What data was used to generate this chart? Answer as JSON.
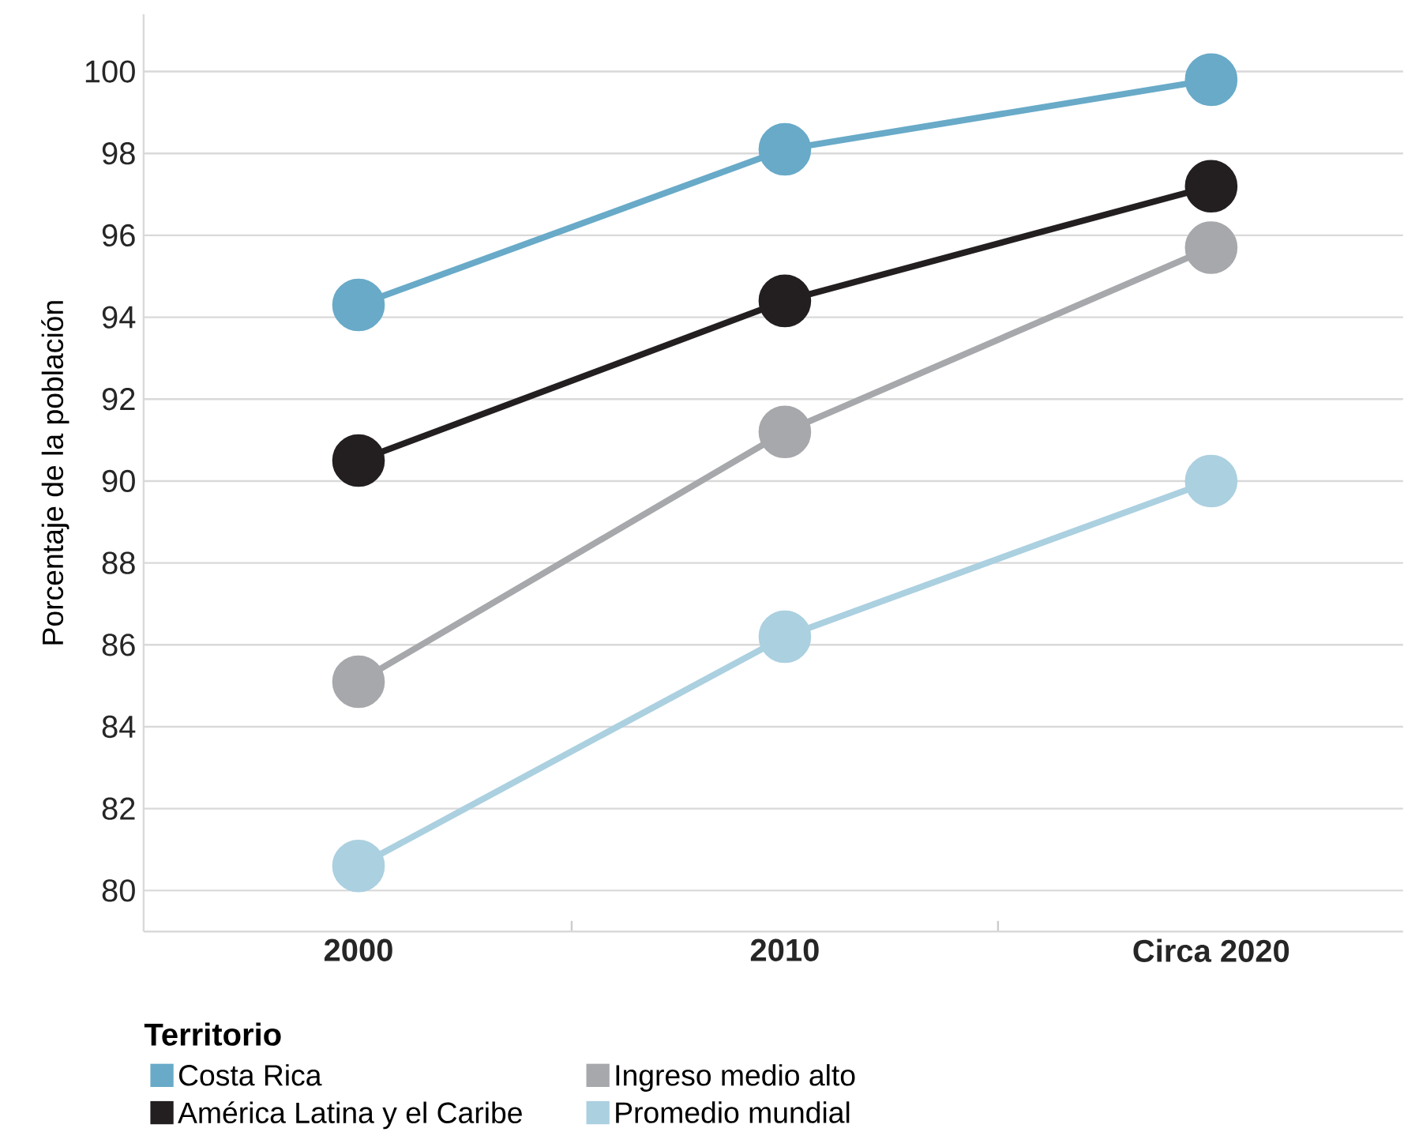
{
  "chart_data": {
    "type": "line",
    "ylabel": "Porcentaje de la población",
    "legend_title": "Territorio",
    "categories": [
      "2000",
      "2010",
      "Circa 2020"
    ],
    "series": [
      {
        "name": "Costa Rica",
        "color": "#68aac8",
        "values": [
          94.3,
          98.1,
          99.8
        ]
      },
      {
        "name": "América Latina y el Caribe",
        "color": "#231f20",
        "values": [
          90.5,
          94.4,
          97.2
        ]
      },
      {
        "name": "Ingreso medio alto",
        "color": "#a7a8ab",
        "values": [
          85.1,
          91.2,
          95.7
        ]
      },
      {
        "name": "Promedio mundial",
        "color": "#abd0e0",
        "values": [
          80.6,
          86.2,
          90.0
        ]
      }
    ],
    "ylim": [
      79,
      101.4
    ],
    "yticks": [
      80,
      82,
      84,
      86,
      88,
      90,
      92,
      94,
      96,
      98,
      100
    ],
    "grid": "y",
    "legend": "bottom left",
    "marker": "circle",
    "line_style": "solid"
  }
}
